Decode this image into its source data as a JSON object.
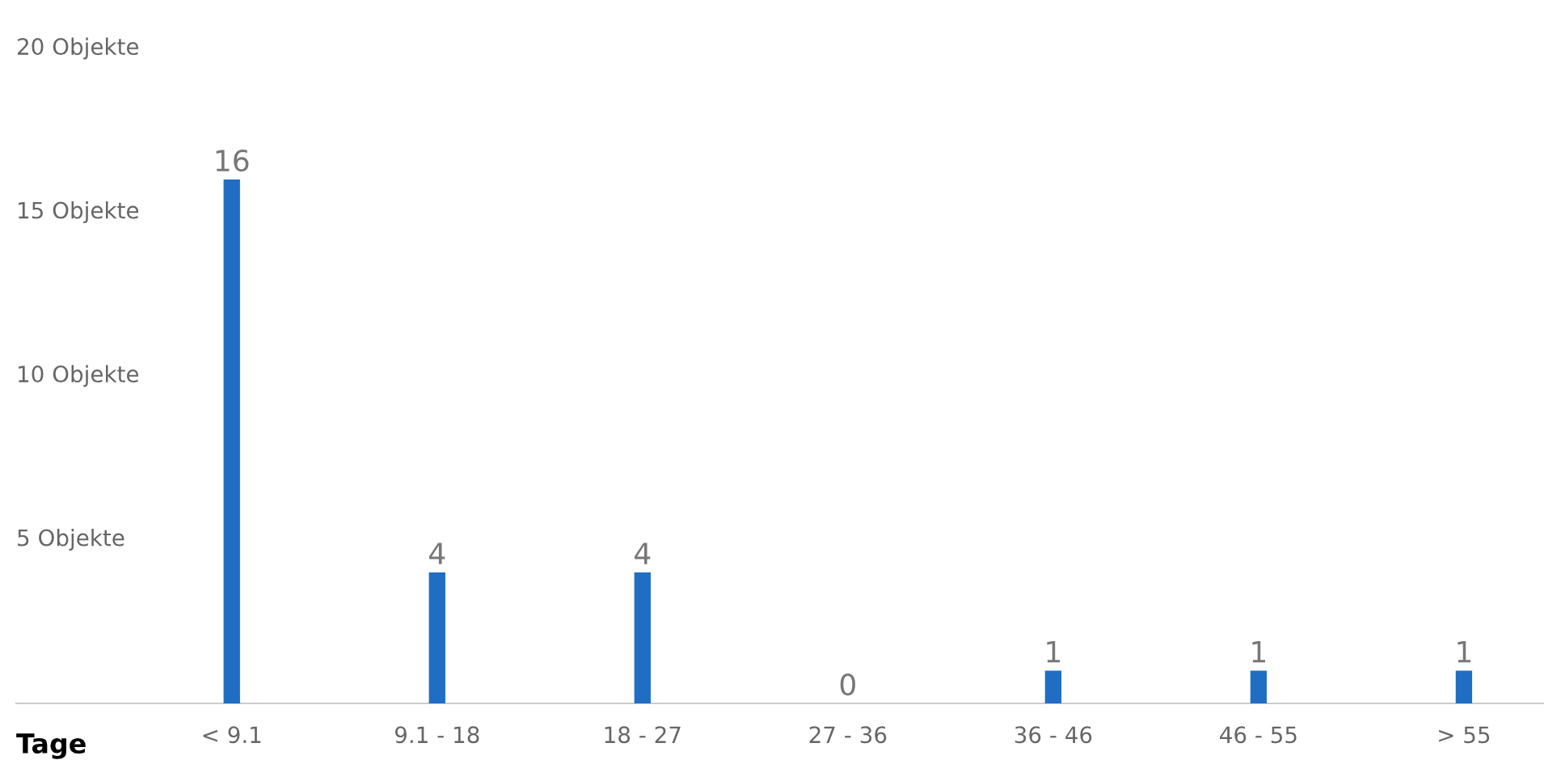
{
  "chart_data": {
    "type": "bar",
    "xlabel": "Tage",
    "categories": [
      "< 9.1",
      "9.1 - 18",
      "18 - 27",
      "27 - 36",
      "36 - 46",
      "46 - 55",
      "> 55"
    ],
    "values": [
      16,
      4,
      4,
      0,
      1,
      1,
      1
    ],
    "color": "#1f6ec4",
    "data_labels": true,
    "ylim": [
      0,
      20
    ],
    "yticks": [
      {
        "value": 5,
        "label": "5 Objekte"
      },
      {
        "value": 10,
        "label": "10 Objekte"
      },
      {
        "value": 15,
        "label": "15 Objekte"
      },
      {
        "value": 20,
        "label": "20 Objekte"
      }
    ],
    "grid": false
  }
}
